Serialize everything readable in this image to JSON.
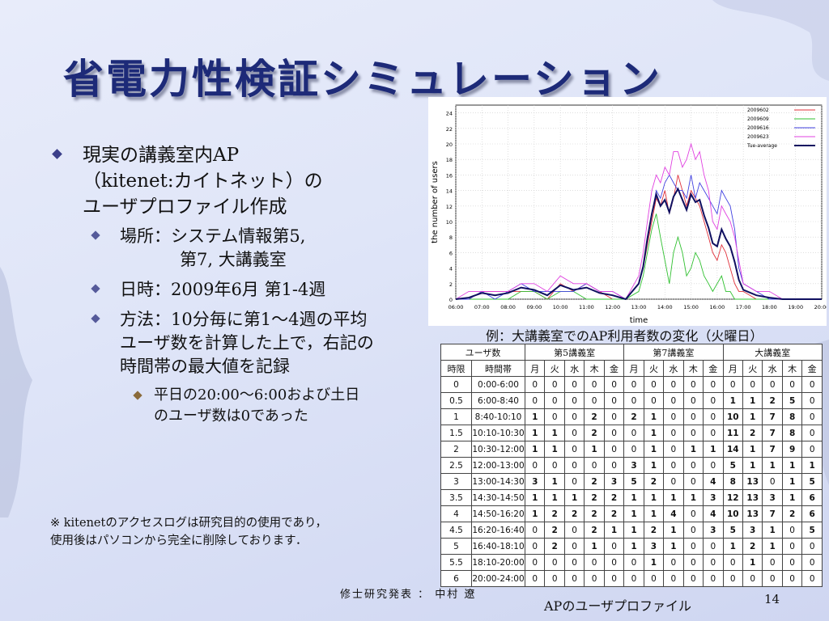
{
  "slide": {
    "title": "省電力性検証シミュレーション",
    "bullets": {
      "b1_line1": "現実の講義室内AP",
      "b1_line2": "（kitenet:カイトネット）の",
      "b1_line3": "ユーザプロファイル作成",
      "b2a_line1": "場所：システム情報第5,",
      "b2a_line2": "第7, 大講義室",
      "b2b": "日時：2009年6月 第1-4週",
      "b2c_line1": "方法：10分毎に第1～4週の平均",
      "b2c_line2": "ユーザ数を計算した上で，右記の",
      "b2c_line3": "時間帯の最大値を記録",
      "b3_line1": "平日の20:00～6:00および土日",
      "b3_line2": "のユーザ数は0であった"
    },
    "note_line1": "※ kitenetのアクセスログは研究目的の使用であり，",
    "note_line2": "使用後はパソコンから完全に削除しております．",
    "footer": "修士研究発表 ： 中村 遼",
    "page_number": "14",
    "chart_caption": "例：大講義室でのAP利用者数の変化（火曜日）",
    "table_caption": "APのユーザプロファイル"
  },
  "table": {
    "group_header": [
      "ユーザ数",
      "第5講義室",
      "第7講義室",
      "大講義室"
    ],
    "col_headers": [
      "時限",
      "時間帯",
      "月",
      "火",
      "水",
      "木",
      "金",
      "月",
      "火",
      "水",
      "木",
      "金",
      "月",
      "火",
      "水",
      "木",
      "金"
    ],
    "rows": [
      [
        "0",
        "0:00-6:00",
        "0",
        "0",
        "0",
        "0",
        "0",
        "0",
        "0",
        "0",
        "0",
        "0",
        "0",
        "0",
        "0",
        "0",
        "0"
      ],
      [
        "0.5",
        "6:00-8:40",
        "0",
        "0",
        "0",
        "0",
        "0",
        "0",
        "0",
        "0",
        "0",
        "0",
        "1",
        "1",
        "2",
        "5",
        "0"
      ],
      [
        "1",
        "8:40-10:10",
        "1",
        "0",
        "0",
        "2",
        "0",
        "2",
        "1",
        "0",
        "0",
        "0",
        "10",
        "1",
        "7",
        "8",
        "0"
      ],
      [
        "1.5",
        "10:10-10:30",
        "1",
        "1",
        "0",
        "2",
        "0",
        "0",
        "1",
        "0",
        "0",
        "0",
        "11",
        "2",
        "7",
        "8",
        "0"
      ],
      [
        "2",
        "10:30-12:00",
        "1",
        "1",
        "0",
        "1",
        "0",
        "0",
        "1",
        "0",
        "1",
        "1",
        "14",
        "1",
        "7",
        "9",
        "0"
      ],
      [
        "2.5",
        "12:00-13:00",
        "0",
        "0",
        "0",
        "0",
        "0",
        "3",
        "1",
        "0",
        "0",
        "0",
        "5",
        "1",
        "1",
        "1",
        "1"
      ],
      [
        "3",
        "13:00-14:30",
        "3",
        "1",
        "0",
        "2",
        "3",
        "5",
        "2",
        "0",
        "0",
        "4",
        "8",
        "13",
        "0",
        "1",
        "5"
      ],
      [
        "3.5",
        "14:30-14:50",
        "1",
        "1",
        "1",
        "2",
        "2",
        "1",
        "1",
        "1",
        "1",
        "3",
        "12",
        "13",
        "3",
        "1",
        "6"
      ],
      [
        "4",
        "14:50-16:20",
        "1",
        "2",
        "2",
        "2",
        "2",
        "1",
        "1",
        "4",
        "0",
        "4",
        "10",
        "13",
        "7",
        "2",
        "6"
      ],
      [
        "4.5",
        "16:20-16:40",
        "0",
        "2",
        "0",
        "2",
        "1",
        "1",
        "2",
        "1",
        "0",
        "3",
        "5",
        "3",
        "1",
        "0",
        "5"
      ],
      [
        "5",
        "16:40-18:10",
        "0",
        "2",
        "0",
        "1",
        "0",
        "1",
        "3",
        "1",
        "0",
        "0",
        "1",
        "2",
        "1",
        "0",
        "0"
      ],
      [
        "5.5",
        "18:10-20:00",
        "0",
        "0",
        "0",
        "0",
        "0",
        "0",
        "1",
        "0",
        "0",
        "0",
        "0",
        "1",
        "0",
        "0",
        "0"
      ],
      [
        "6",
        "20:00-24:00",
        "0",
        "0",
        "0",
        "0",
        "0",
        "0",
        "0",
        "0",
        "0",
        "0",
        "0",
        "0",
        "0",
        "0",
        "0"
      ]
    ]
  },
  "chart_data": {
    "type": "line",
    "xlabel": "time",
    "ylabel": "the number of users",
    "xlim": [
      6,
      20
    ],
    "ylim": [
      0,
      25
    ],
    "x_ticks": [
      "06:00",
      "07:00",
      "08:00",
      "09:00",
      "10:00",
      "11:00",
      "12:00",
      "13:00",
      "14:00",
      "15:00",
      "16:00",
      "17:00",
      "18:00",
      "19:00",
      "20:00"
    ],
    "y_ticks": [
      "0",
      "2",
      "4",
      "6",
      "8",
      "10",
      "12",
      "14",
      "16",
      "18",
      "20",
      "22",
      "24"
    ],
    "grid": true,
    "legend": "top-right",
    "x": [
      6.0,
      6.5,
      7.0,
      7.5,
      8.0,
      8.5,
      9.0,
      9.5,
      10.0,
      10.5,
      11.0,
      11.5,
      12.0,
      12.5,
      13.0,
      13.17,
      13.33,
      13.5,
      13.67,
      13.83,
      14.0,
      14.17,
      14.33,
      14.5,
      14.67,
      14.83,
      15.0,
      15.17,
      15.33,
      15.5,
      15.67,
      15.83,
      16.0,
      16.17,
      16.33,
      16.5,
      16.67,
      16.83,
      17.0,
      17.5,
      18.0,
      18.5,
      19.0,
      19.5,
      20.0
    ],
    "series": [
      {
        "name": "2009602",
        "color": "#e0303a",
        "values": [
          0,
          0,
          1,
          1,
          1,
          1,
          1,
          0,
          2,
          1,
          2,
          1,
          0,
          0,
          2,
          4,
          7,
          10,
          13,
          12,
          14,
          11,
          13,
          16,
          14,
          12,
          14,
          13,
          12,
          10,
          8,
          6,
          5,
          7,
          6,
          4,
          2,
          1,
          1,
          0,
          0,
          0,
          0,
          0,
          0
        ]
      },
      {
        "name": "2009609",
        "color": "#30c030",
        "values": [
          0,
          0,
          0,
          0,
          0,
          1,
          1,
          0,
          1,
          1,
          0,
          0,
          0,
          0,
          1,
          3,
          6,
          9,
          11,
          8,
          5,
          2,
          6,
          8,
          6,
          3,
          4,
          6,
          5,
          3,
          2,
          1,
          2,
          3,
          1,
          1,
          0,
          0,
          0,
          0,
          0,
          0,
          0,
          0,
          0
        ]
      },
      {
        "name": "2009616",
        "color": "#4040e0",
        "values": [
          0,
          0,
          1,
          0,
          1,
          2,
          1,
          1,
          1,
          1,
          2,
          1,
          1,
          0,
          2,
          4,
          8,
          11,
          14,
          13,
          15,
          16,
          15,
          14,
          14,
          13,
          16,
          13,
          15,
          14,
          13,
          12,
          11,
          14,
          13,
          12,
          9,
          4,
          2,
          1,
          0,
          0,
          0,
          0,
          0
        ]
      },
      {
        "name": "2009623",
        "color": "#e040e0",
        "values": [
          0,
          1,
          1,
          1,
          1,
          2,
          2,
          1,
          3,
          2,
          2,
          1,
          1,
          0,
          3,
          6,
          10,
          14,
          16,
          15,
          17,
          16,
          19,
          19,
          17,
          18,
          20,
          18,
          19,
          16,
          14,
          10,
          9,
          12,
          11,
          10,
          8,
          5,
          2,
          1,
          1,
          0,
          0,
          0,
          0
        ]
      },
      {
        "name": "Tue-average",
        "color": "#101060",
        "values": [
          0,
          0.2,
          0.8,
          0.5,
          0.8,
          1.5,
          1.2,
          0.5,
          1.8,
          1.2,
          1.5,
          0.8,
          0.5,
          0,
          2,
          4.2,
          7.8,
          11,
          13.5,
          12,
          12.8,
          11.2,
          13.2,
          14.2,
          12.8,
          11.5,
          13.5,
          12.5,
          12.8,
          10.8,
          9.2,
          7.2,
          6.8,
          9,
          7.8,
          6.8,
          4.8,
          2.5,
          1.2,
          0.5,
          0.2,
          0,
          0,
          0,
          0
        ]
      }
    ]
  }
}
